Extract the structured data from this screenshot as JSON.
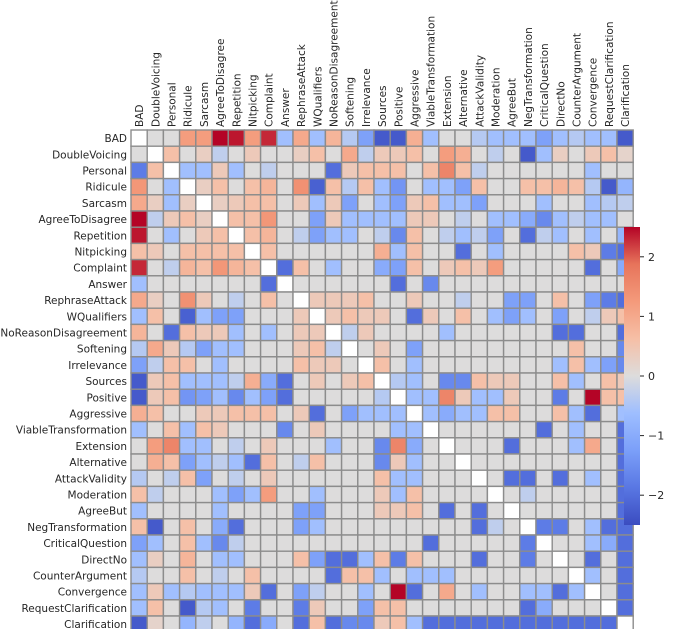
{
  "chart_data": {
    "type": "heatmap",
    "title": "",
    "xlabel": "",
    "ylabel": "",
    "labels": [
      "BAD",
      "DoubleVoicing",
      "Personal",
      "Ridicule",
      "Sarcasm",
      "AgreeToDisagree",
      "Repetition",
      "Nitpicking",
      "Complaint",
      "Answer",
      "RephraseAttack",
      "WQualifiers",
      "NoReasonDisagreement",
      "Softening",
      "Irrelevance",
      "Sources",
      "Positive",
      "Aggressive",
      "ViableTransformation",
      "Extension",
      "Alternative",
      "AttackValidity",
      "Moderation",
      "AgreeBut",
      "NegTransformation",
      "CriticalQuestion",
      "DirectNo",
      "CounterArgument",
      "Convergence",
      "RequestClarification",
      "Clarification"
    ],
    "x_labels_position": "top",
    "colormap": "coolwarm",
    "vmin": -2.5,
    "vmax": 2.5,
    "colorbar_ticks": [
      2,
      1,
      0,
      -1,
      -2
    ],
    "colorbar_tick_labels": [
      "2",
      "1",
      "0",
      "−1",
      "−2"
    ],
    "grid": true,
    "values": [
      [
        null,
        0.0,
        0.0,
        1.2,
        1.2,
        2.5,
        2.4,
        1.2,
        2.3,
        -0.6,
        1.0,
        -0.6,
        0.8,
        -0.4,
        -1.2,
        -2.3,
        -2.3,
        0.9,
        -0.6,
        0.0,
        0.0,
        -0.4,
        -0.6,
        -0.6,
        -0.6,
        -1.2,
        -0.6,
        -0.4,
        -0.6,
        -0.6,
        -2.3
      ],
      [
        0.0,
        null,
        0.6,
        0.0,
        0.3,
        -0.3,
        0.0,
        0.4,
        0.0,
        0.0,
        0.3,
        0.6,
        0.0,
        1.0,
        -0.3,
        0.4,
        0.4,
        0.6,
        0.0,
        1.2,
        0.9,
        0.0,
        -0.3,
        0.0,
        -2.3,
        -0.6,
        0.3,
        0.0,
        0.4,
        0.6,
        0.2
      ],
      [
        -1.8,
        0.6,
        null,
        -0.6,
        -0.6,
        0.4,
        -0.6,
        0.0,
        -0.3,
        0.0,
        0.0,
        0.0,
        -2.0,
        0.4,
        0.6,
        0.6,
        0.6,
        0.0,
        0.6,
        1.6,
        0.6,
        -0.3,
        0.0,
        0.0,
        0.0,
        0.0,
        0.0,
        0.0,
        -0.6,
        0.0,
        0.0
      ],
      [
        1.3,
        0.0,
        -0.6,
        null,
        0.3,
        0.6,
        0.0,
        0.6,
        0.8,
        0.0,
        1.4,
        -2.2,
        0.6,
        -0.4,
        0.6,
        -0.6,
        -1.4,
        0.0,
        -0.6,
        -0.6,
        -1.2,
        0.6,
        0.0,
        0.0,
        0.6,
        0.6,
        0.8,
        0.6,
        -0.4,
        -2.3,
        -0.8
      ],
      [
        1.0,
        0.3,
        -0.6,
        0.3,
        null,
        0.3,
        0.4,
        0.6,
        0.6,
        0.0,
        0.4,
        -0.6,
        0.4,
        -1.2,
        0.0,
        -0.6,
        -1.2,
        0.4,
        0.6,
        -0.6,
        -0.6,
        -1.2,
        0.0,
        0.0,
        0.0,
        -0.6,
        0.0,
        0.0,
        -0.6,
        -0.4,
        -0.3
      ],
      [
        2.5,
        -0.3,
        0.4,
        0.6,
        0.3,
        null,
        0.6,
        0.6,
        1.3,
        0.0,
        0.0,
        -1.2,
        0.4,
        -0.6,
        -0.6,
        -0.6,
        -0.6,
        0.4,
        0.4,
        0.0,
        -0.3,
        0.0,
        -0.6,
        -0.6,
        -1.0,
        -1.6,
        -0.6,
        -0.3,
        -0.6,
        -0.6,
        0.0
      ],
      [
        2.4,
        0.0,
        -0.6,
        0.0,
        0.4,
        0.6,
        null,
        0.6,
        0.8,
        0.0,
        -0.3,
        -1.2,
        -0.6,
        -0.6,
        0.0,
        -0.3,
        -1.6,
        0.6,
        0.0,
        -0.3,
        -0.6,
        -0.3,
        -1.2,
        0.0,
        -2.0,
        -0.3,
        -0.6,
        0.0,
        -0.6,
        0.0,
        -0.8
      ],
      [
        0.6,
        0.4,
        0.0,
        0.6,
        0.6,
        0.6,
        0.6,
        null,
        0.6,
        0.0,
        0.0,
        0.0,
        0.0,
        0.0,
        0.0,
        0.9,
        -0.6,
        0.6,
        0.0,
        0.0,
        -2.0,
        0.0,
        -0.6,
        0.0,
        0.0,
        0.0,
        0.0,
        0.6,
        0.4,
        -1.8,
        -2.0
      ],
      [
        2.3,
        0.0,
        -0.3,
        0.8,
        0.6,
        1.3,
        0.8,
        0.6,
        null,
        -2.0,
        0.6,
        0.0,
        -0.6,
        0.0,
        0.0,
        -1.0,
        -1.2,
        0.6,
        0.0,
        0.4,
        0.6,
        0.4,
        1.2,
        0.0,
        0.0,
        0.0,
        0.0,
        0.0,
        -2.0,
        0.0,
        -1.0
      ],
      [
        -0.6,
        0.0,
        0.0,
        0.0,
        0.0,
        0.0,
        0.0,
        0.0,
        -2.0,
        null,
        0.0,
        0.0,
        0.0,
        0.0,
        0.0,
        0.0,
        -2.0,
        0.0,
        -1.6,
        0.0,
        0.0,
        0.0,
        0.0,
        0.0,
        0.0,
        0.0,
        0.0,
        0.0,
        0.0,
        0.0,
        0.0
      ],
      [
        1.0,
        0.3,
        0.0,
        1.4,
        0.4,
        0.0,
        -0.3,
        0.0,
        0.6,
        0.0,
        null,
        0.4,
        0.4,
        0.4,
        0.6,
        0.0,
        0.0,
        0.4,
        0.0,
        0.0,
        -0.3,
        0.0,
        0.0,
        -1.2,
        -1.2,
        0.0,
        0.6,
        0.0,
        -1.2,
        -1.8,
        -2.0
      ],
      [
        -0.6,
        0.6,
        0.0,
        -2.2,
        -0.6,
        -1.2,
        -1.2,
        0.0,
        0.0,
        0.0,
        0.4,
        null,
        0.4,
        0.6,
        0.4,
        0.4,
        0.0,
        -2.0,
        0.4,
        0.0,
        0.6,
        0.0,
        -0.6,
        -1.2,
        -0.6,
        0.0,
        -1.2,
        0.0,
        -0.3,
        0.4,
        0.6
      ],
      [
        0.8,
        0.0,
        -2.0,
        0.6,
        0.4,
        0.4,
        -0.6,
        0.0,
        -0.6,
        0.0,
        0.4,
        0.4,
        null,
        -0.3,
        0.4,
        0.0,
        0.0,
        0.0,
        0.0,
        -0.6,
        0.0,
        0.0,
        0.0,
        0.0,
        0.0,
        0.0,
        -2.0,
        -2.0,
        0.0,
        0.0,
        -2.0
      ],
      [
        -0.4,
        1.0,
        0.4,
        -0.4,
        -1.2,
        -0.6,
        -0.6,
        0.0,
        0.0,
        0.0,
        0.4,
        0.6,
        -0.3,
        null,
        0.0,
        0.4,
        0.0,
        -1.2,
        0.0,
        0.0,
        0.0,
        0.0,
        0.0,
        0.0,
        0.0,
        0.0,
        0.0,
        0.6,
        0.0,
        0.0,
        -1.6
      ],
      [
        -1.2,
        -0.3,
        0.6,
        0.6,
        0.0,
        -0.6,
        0.0,
        0.0,
        0.0,
        0.0,
        0.6,
        0.4,
        0.4,
        0.0,
        null,
        0.6,
        0.0,
        -0.6,
        0.0,
        0.0,
        0.0,
        0.0,
        0.0,
        0.0,
        0.0,
        0.0,
        -0.6,
        0.6,
        -0.6,
        -1.2,
        -1.6
      ],
      [
        -2.3,
        0.4,
        0.6,
        -0.6,
        -0.6,
        -0.6,
        -0.3,
        0.9,
        -1.0,
        -2.0,
        0.0,
        0.4,
        0.0,
        0.4,
        0.6,
        null,
        -0.4,
        -0.6,
        0.0,
        -1.6,
        -1.6,
        0.6,
        0.4,
        0.4,
        0.0,
        0.0,
        0.6,
        -0.6,
        0.0,
        0.6,
        0.4
      ],
      [
        -2.3,
        0.4,
        0.6,
        -1.4,
        -1.2,
        -0.6,
        -1.6,
        -0.6,
        -1.2,
        -2.0,
        0.0,
        0.0,
        0.0,
        0.0,
        0.0,
        -0.4,
        null,
        -0.6,
        -0.6,
        1.6,
        0.4,
        -0.6,
        -0.6,
        0.4,
        0.0,
        0.0,
        -1.8,
        0.0,
        2.5,
        0.6,
        0.6
      ],
      [
        0.9,
        0.6,
        0.0,
        0.0,
        0.4,
        0.4,
        0.6,
        0.6,
        0.6,
        0.0,
        0.4,
        -2.0,
        0.0,
        -1.2,
        -0.6,
        -0.6,
        -0.6,
        null,
        -0.6,
        -1.0,
        -0.6,
        -0.6,
        0.6,
        0.6,
        0.0,
        0.0,
        0.6,
        -0.6,
        -2.0,
        0.0,
        -0.6
      ],
      [
        -0.6,
        0.0,
        0.6,
        -0.6,
        0.6,
        0.4,
        0.0,
        0.0,
        0.0,
        -1.6,
        0.0,
        0.4,
        0.0,
        0.0,
        0.0,
        0.0,
        -0.6,
        -0.6,
        null,
        0.0,
        0.0,
        0.0,
        0.0,
        0.0,
        0.0,
        -2.0,
        0.0,
        -0.6,
        0.0,
        0.0,
        -2.0
      ],
      [
        0.0,
        1.2,
        1.6,
        -0.6,
        -0.6,
        0.0,
        -0.3,
        0.0,
        0.4,
        0.0,
        0.0,
        0.0,
        -0.6,
        0.0,
        0.0,
        -1.6,
        1.6,
        -1.0,
        0.0,
        null,
        0.0,
        0.0,
        0.0,
        -2.0,
        0.0,
        0.0,
        0.0,
        -0.6,
        1.0,
        0.0,
        -2.0
      ],
      [
        0.0,
        0.9,
        0.6,
        -1.2,
        -0.6,
        -0.3,
        -0.6,
        -2.0,
        0.6,
        0.0,
        -0.3,
        0.6,
        0.0,
        0.0,
        0.0,
        -1.6,
        0.4,
        -0.6,
        0.0,
        0.0,
        null,
        0.0,
        0.0,
        0.0,
        0.0,
        0.0,
        0.0,
        0.0,
        0.0,
        0.0,
        -2.0
      ],
      [
        -0.4,
        0.0,
        -0.3,
        0.6,
        -1.2,
        0.0,
        -0.3,
        0.0,
        0.4,
        0.0,
        0.0,
        0.0,
        0.0,
        0.0,
        0.0,
        0.6,
        -0.6,
        -0.6,
        0.0,
        0.0,
        0.0,
        null,
        0.0,
        -2.0,
        -2.0,
        0.0,
        -2.0,
        0.0,
        -0.6,
        0.0,
        -2.0
      ],
      [
        0.6,
        -0.3,
        0.0,
        0.0,
        0.0,
        -0.6,
        -1.2,
        -0.6,
        1.2,
        0.0,
        0.0,
        -0.6,
        0.0,
        0.0,
        0.0,
        0.4,
        -0.6,
        0.6,
        0.0,
        0.0,
        0.0,
        0.0,
        null,
        0.0,
        -0.3,
        0.0,
        0.0,
        0.0,
        0.0,
        0.0,
        -2.0
      ],
      [
        -0.6,
        0.0,
        0.0,
        0.0,
        0.0,
        -0.6,
        0.0,
        0.0,
        0.0,
        0.0,
        -1.2,
        -1.2,
        0.0,
        0.0,
        0.0,
        0.4,
        0.4,
        0.6,
        0.0,
        -2.0,
        0.0,
        -2.0,
        0.0,
        null,
        0.0,
        0.0,
        0.0,
        0.0,
        0.0,
        0.0,
        -2.0
      ],
      [
        0.6,
        -2.3,
        0.0,
        0.6,
        0.0,
        -1.0,
        -2.0,
        0.0,
        0.0,
        0.0,
        -1.2,
        -0.6,
        0.0,
        0.0,
        0.0,
        0.0,
        0.0,
        0.0,
        0.0,
        0.0,
        0.0,
        -2.0,
        -0.3,
        0.0,
        null,
        -1.8,
        -1.8,
        0.0,
        -0.6,
        -2.0,
        -2.0
      ],
      [
        -1.2,
        -0.6,
        0.0,
        0.6,
        -0.6,
        -1.6,
        -0.3,
        0.0,
        0.0,
        0.0,
        0.0,
        0.0,
        0.0,
        0.0,
        0.0,
        0.0,
        0.0,
        0.0,
        -2.0,
        0.0,
        0.0,
        0.0,
        0.0,
        0.0,
        -1.8,
        null,
        0.0,
        0.0,
        -0.6,
        -1.0,
        -2.0
      ],
      [
        -0.6,
        0.3,
        0.0,
        0.8,
        0.0,
        -0.6,
        -0.6,
        0.0,
        0.0,
        0.0,
        0.6,
        -1.2,
        -2.0,
        -2.0,
        -0.6,
        0.6,
        -1.8,
        0.6,
        0.0,
        0.0,
        0.0,
        -2.0,
        0.0,
        0.0,
        -1.8,
        0.0,
        null,
        0.0,
        -2.0,
        0.0,
        -2.0
      ],
      [
        -0.4,
        0.0,
        0.0,
        0.6,
        0.0,
        -0.3,
        0.0,
        0.6,
        0.0,
        0.0,
        0.0,
        0.0,
        -2.0,
        0.6,
        0.6,
        -0.6,
        0.0,
        -0.6,
        -0.6,
        -0.6,
        0.0,
        0.0,
        0.0,
        0.0,
        0.0,
        0.0,
        0.0,
        null,
        -0.6,
        0.0,
        -2.0
      ],
      [
        -0.6,
        0.4,
        -0.6,
        -0.4,
        -0.6,
        -0.6,
        -0.6,
        0.4,
        -2.0,
        0.0,
        -1.2,
        -0.3,
        0.0,
        0.0,
        -0.6,
        0.0,
        2.5,
        -2.0,
        0.0,
        1.0,
        0.0,
        -0.6,
        0.0,
        0.0,
        -0.6,
        -0.6,
        -2.0,
        -0.6,
        null,
        0.0,
        -2.0
      ],
      [
        -0.6,
        0.6,
        0.0,
        -2.3,
        -0.4,
        -0.6,
        0.0,
        -1.8,
        0.0,
        0.0,
        -1.8,
        0.4,
        0.0,
        0.0,
        -1.2,
        0.6,
        0.6,
        0.0,
        0.0,
        0.0,
        0.0,
        0.0,
        0.0,
        0.0,
        -2.0,
        -1.0,
        0.0,
        0.0,
        0.0,
        null,
        -2.0
      ],
      [
        -2.3,
        0.2,
        0.0,
        -0.8,
        -0.3,
        0.0,
        -0.8,
        -2.0,
        -1.0,
        0.0,
        -2.0,
        0.6,
        -2.0,
        -1.6,
        -1.6,
        0.4,
        0.6,
        -0.6,
        -2.0,
        -2.0,
        -2.0,
        -2.0,
        -2.0,
        -2.0,
        -2.0,
        -2.0,
        -2.0,
        -2.0,
        -2.0,
        -2.0,
        null
      ]
    ]
  }
}
